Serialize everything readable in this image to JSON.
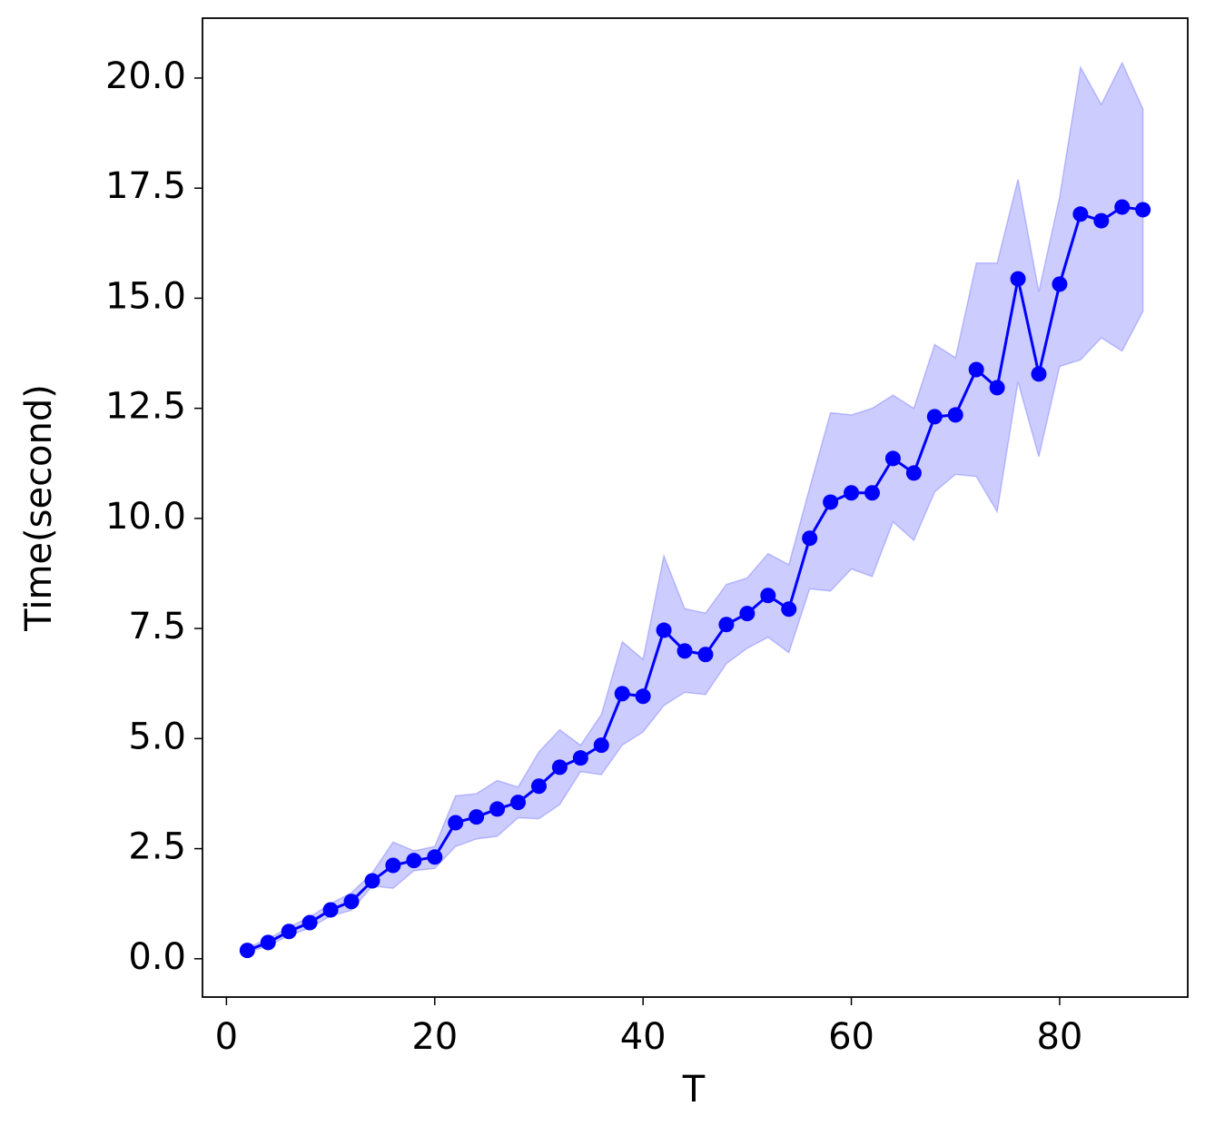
{
  "chart_data": {
    "type": "line",
    "xlabel": "T",
    "ylabel": "Time(second)",
    "x": [
      2,
      4,
      6,
      8,
      10,
      12,
      14,
      16,
      18,
      20,
      22,
      24,
      26,
      28,
      30,
      32,
      34,
      36,
      38,
      40,
      42,
      44,
      46,
      48,
      50,
      52,
      54,
      56,
      58,
      60,
      62,
      64,
      66,
      68,
      70,
      72,
      74,
      76,
      78,
      80,
      82,
      84,
      86,
      88
    ],
    "series": [
      {
        "color": "#0000ff",
        "band_color": "#0000ff",
        "values": [
          0.19,
          0.37,
          0.62,
          0.82,
          1.11,
          1.3,
          1.77,
          2.12,
          2.23,
          2.31,
          3.09,
          3.22,
          3.4,
          3.55,
          3.92,
          4.35,
          4.56,
          4.85,
          6.02,
          5.96,
          7.46,
          6.99,
          6.91,
          7.59,
          7.84,
          8.25,
          7.94,
          9.55,
          10.37,
          10.58,
          10.58,
          11.36,
          11.03,
          12.31,
          12.35,
          13.38,
          12.97,
          15.44,
          13.28,
          15.32,
          16.91,
          16.76,
          17.07,
          17.01
        ],
        "upper": [
          0.25,
          0.45,
          0.72,
          0.95,
          1.25,
          1.5,
          1.95,
          2.65,
          2.45,
          2.55,
          3.7,
          3.75,
          4.05,
          3.9,
          4.7,
          5.2,
          4.85,
          5.55,
          7.2,
          6.8,
          9.15,
          7.95,
          7.85,
          8.5,
          8.65,
          9.2,
          8.95,
          10.7,
          12.4,
          12.35,
          12.5,
          12.8,
          12.5,
          13.95,
          13.65,
          15.8,
          15.8,
          17.7,
          15.15,
          17.3,
          20.25,
          19.4,
          20.35,
          19.3
        ],
        "lower": [
          0.13,
          0.3,
          0.52,
          0.7,
          0.97,
          1.1,
          1.65,
          1.6,
          2.0,
          2.05,
          2.55,
          2.72,
          2.78,
          3.2,
          3.18,
          3.5,
          4.25,
          4.18,
          4.85,
          5.15,
          5.75,
          6.05,
          6.0,
          6.7,
          7.05,
          7.3,
          6.95,
          8.4,
          8.35,
          8.85,
          8.68,
          9.92,
          9.5,
          10.6,
          11.0,
          10.95,
          10.15,
          13.1,
          11.4,
          13.45,
          13.6,
          14.1,
          13.8,
          14.7
        ]
      }
    ],
    "xlim": [
      -2.3,
      92.3
    ],
    "xticks": [
      0,
      20,
      40,
      60,
      80
    ],
    "ylim": [
      -0.87,
      21.36
    ],
    "yticks": [
      {
        "value": 0,
        "label": "0.0"
      },
      2.5,
      {
        "value": 5,
        "label": "5.0"
      },
      7.5,
      {
        "value": 10,
        "label": "10.0"
      },
      12.5,
      {
        "value": 15,
        "label": "15.0"
      },
      17.5,
      {
        "value": 20,
        "label": "20.0"
      }
    ]
  }
}
